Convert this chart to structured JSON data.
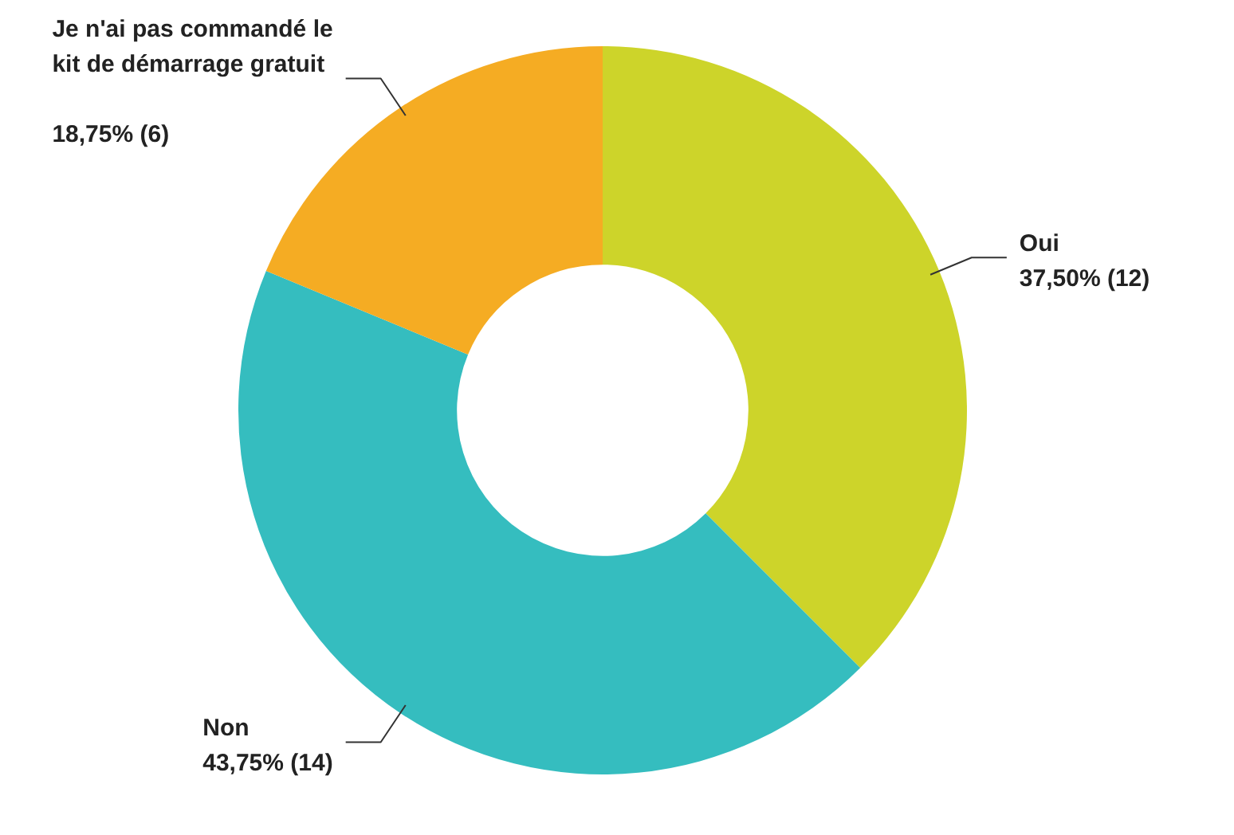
{
  "chart_data": {
    "type": "donut",
    "categories": [
      "Oui",
      "Non",
      "Je n'ai pas commandé le kit de démarrage gratuit"
    ],
    "values": [
      12,
      14,
      6
    ],
    "value_labels": [
      "37,50% (12)",
      "43,75% (14)",
      "18,75% (6)"
    ],
    "colors": [
      "#cdd42a",
      "#35bdbf",
      "#f5ac23"
    ],
    "legend": false
  }
}
